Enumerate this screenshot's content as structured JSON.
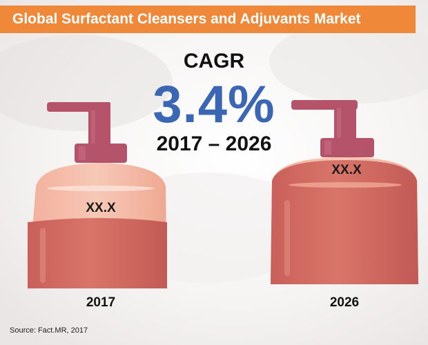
{
  "header": {
    "title": "Global Surfactant Cleansers and Adjuvants Market"
  },
  "cagr": {
    "label": "CAGR",
    "value": "3.4%",
    "period": "2017 – 2026"
  },
  "bottles": [
    {
      "year": "2017",
      "value_label": "XX.X"
    },
    {
      "year": "2026",
      "value_label": "XX.X"
    }
  ],
  "footer": {
    "source": "Source: Fact.MR, 2017"
  },
  "colors": {
    "banner": "#f0883a",
    "cagr_value": "#3a66b3",
    "pump": "#b5536a",
    "bottle_light": "#f3b8a4",
    "bottle_liquid": "#cc6660"
  }
}
